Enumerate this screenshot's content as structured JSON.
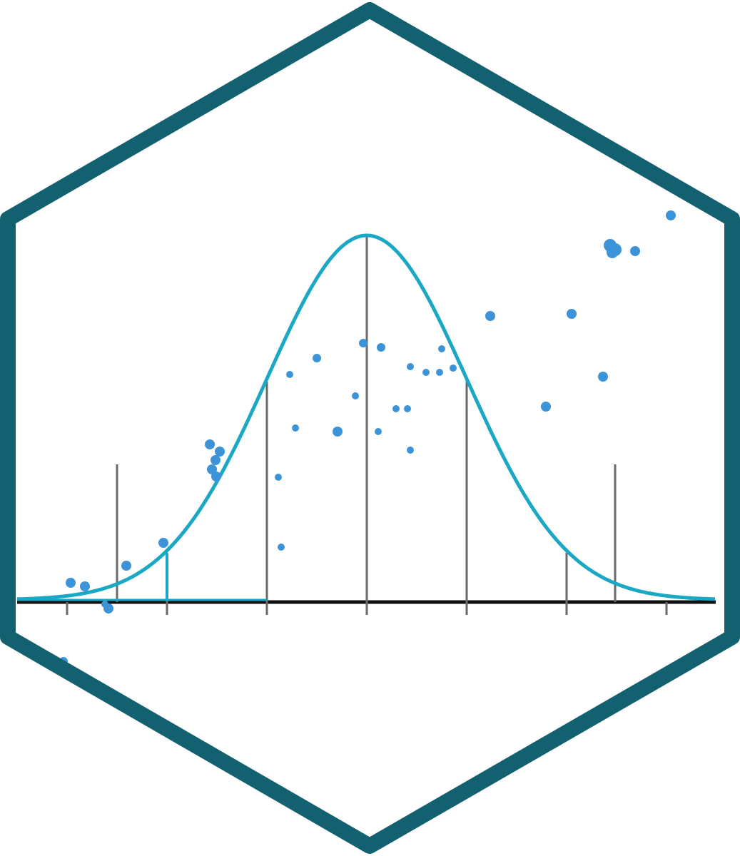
{
  "logo": {
    "type": "hex-sticker",
    "subject": "normal-distribution-curve",
    "colors": {
      "background": "#ffffff",
      "hex_border": "#126070",
      "curve": "#1ba8c4",
      "points": "#3d93d8",
      "stems": "#6a6a6a",
      "baseline": "#111111"
    },
    "icons": [
      "hexagon-outline",
      "bell-curve",
      "scatter-points"
    ]
  }
}
